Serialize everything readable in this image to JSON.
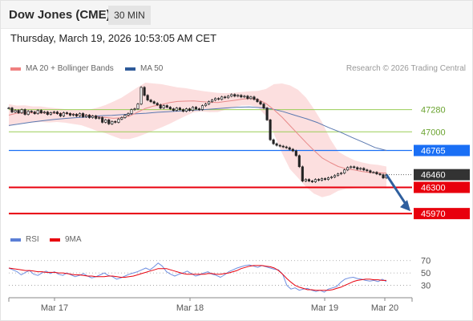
{
  "header": {
    "title": "Dow Jones (CME)",
    "interval": "30 MIN"
  },
  "datetime": "Thursday, March 19, 2026 10:53:05 AM CET",
  "legend": {
    "ma20": {
      "label": "MA 20 + Bollinger Bands",
      "color": "#f08080"
    },
    "ma50": {
      "label": "MA 50",
      "color": "#2e5a99"
    },
    "rsi": {
      "label": "RSI",
      "color": "#5b7fd6"
    },
    "ma9": {
      "label": "9MA",
      "color": "#e8000d"
    }
  },
  "copyright": "Research © 2026 Trading Central",
  "chart_data": [
    {
      "type": "line",
      "title": "",
      "x_labels": [
        "Mar 17",
        "Mar 18",
        "Mar 19",
        "Mar 20"
      ],
      "ylim": [
        45850,
        47650
      ],
      "levels": [
        {
          "value": 47280,
          "label": "47280",
          "style": "resistance",
          "color": "#9acd57"
        },
        {
          "value": 47000,
          "label": "47000",
          "style": "resistance",
          "color": "#9acd57"
        },
        {
          "value": 46765,
          "label": "46765",
          "style": "pivot",
          "color": "#1a6ff5"
        },
        {
          "value": 46460,
          "label": "46460",
          "style": "last-price",
          "color": "#333333"
        },
        {
          "value": 46300,
          "label": "46300",
          "style": "support",
          "color": "#e8000d"
        },
        {
          "value": 45970,
          "label": "45970",
          "style": "support",
          "color": "#e8000d"
        }
      ],
      "series": [
        {
          "name": "Price",
          "values": [
            47300,
            47250,
            47270,
            47240,
            47280,
            47220,
            47260,
            47250,
            47230,
            47270,
            47240,
            47250,
            47220,
            47240,
            47250,
            47230,
            47200,
            47240,
            47230,
            47210,
            47220,
            47200,
            47230,
            47190,
            47210,
            47180,
            47200,
            47170,
            47180,
            47120,
            47150,
            47100,
            47130,
            47120,
            47160,
            47180,
            47210,
            47230,
            47280,
            47290,
            47350,
            47560,
            47460,
            47400,
            47380,
            47360,
            47340,
            47300,
            47330,
            47310,
            47290,
            47270,
            47300,
            47280,
            47260,
            47290,
            47270,
            47310,
            47290,
            47280,
            47330,
            47350,
            47380,
            47400,
            47420,
            47410,
            47440,
            47430,
            47450,
            47470,
            47450,
            47460,
            47440,
            47450,
            47420,
            47440,
            47410,
            47380,
            47350,
            47300,
            47150,
            46900,
            46850,
            46830,
            46820,
            46810,
            46800,
            46780,
            46760,
            46700,
            46560,
            46380,
            46400,
            46380,
            46370,
            46400,
            46390,
            46410,
            46400,
            46420,
            46430,
            46450,
            46470,
            46480,
            46520,
            46550,
            46560,
            46550,
            46530,
            46540,
            46520,
            46510,
            46490,
            46490,
            46470,
            46460,
            46420,
            46460
          ]
        },
        {
          "name": "MA 20",
          "values": [
            47210,
            47235,
            47238,
            47240,
            47238,
            47237,
            47234,
            47231,
            47224,
            47216,
            47207,
            47191,
            47181,
            47171,
            47178,
            47197,
            47247,
            47295,
            47324,
            47344,
            47368,
            47383,
            47387,
            47390,
            47381,
            47373,
            47370,
            47383,
            47396,
            47411,
            47421,
            47408,
            47358,
            47278,
            47186,
            47079,
            46970,
            46864,
            46764,
            46671,
            46613,
            46563,
            46535,
            46519,
            46500,
            46487,
            46484,
            46479
          ]
        },
        {
          "name": "MA 50",
          "values": [
            47080,
            47101,
            47123,
            47140,
            47158,
            47170,
            47180,
            47189,
            47203,
            47208,
            47218,
            47226,
            47234,
            47247,
            47255,
            47264,
            47272,
            47279,
            47290,
            47301,
            47310,
            47314,
            47305,
            47289,
            47254,
            47209,
            47166,
            47115,
            47051,
            46995,
            46929,
            46867,
            46803,
            46765
          ]
        },
        {
          "name": "Bollinger Bands",
          "upper": [
            47350,
            47330,
            47335,
            47320,
            47320,
            47306,
            47296,
            47286,
            47273,
            47276,
            47280,
            47303,
            47337,
            47381,
            47429,
            47493,
            47559,
            47620,
            47610,
            47600,
            47580,
            47560,
            47550,
            47533,
            47515,
            47503,
            47490,
            47487,
            47492,
            47502,
            47510,
            47515,
            47540,
            47600,
            47610,
            47585,
            47530,
            47430,
            47285,
            47120,
            46910,
            46750,
            46692,
            46643,
            46613,
            46593,
            46583,
            46563
          ],
          "lower": [
            47070,
            47103,
            47115,
            47118,
            47124,
            47118,
            47124,
            47115,
            47099,
            47084,
            47049,
            47011,
            46984,
            46944,
            46910,
            46910,
            46936,
            46976,
            47015,
            47055,
            47100,
            47150,
            47200,
            47246,
            47257,
            47248,
            47250,
            47280,
            47310,
            47331,
            47334,
            47310,
            47200,
            46977,
            46734,
            46530,
            46420,
            46304,
            46220,
            46176,
            46201,
            46258,
            46281,
            46289,
            46290,
            46290,
            46296,
            46287
          ]
        }
      ]
    },
    {
      "type": "line",
      "title": "",
      "ylim": [
        0,
        100
      ],
      "y_ticks": [
        30,
        50,
        70
      ],
      "series": [
        {
          "name": "RSI",
          "values": [
            58,
            55,
            52,
            47,
            51,
            54,
            48,
            46,
            50,
            53,
            49,
            52,
            48,
            46,
            50,
            47,
            44,
            46,
            49,
            45,
            42,
            44,
            47,
            50,
            46,
            44,
            40,
            42,
            45,
            48,
            50,
            52,
            55,
            58,
            55,
            60,
            66,
            61,
            52,
            48,
            45,
            48,
            50,
            53,
            49,
            45,
            47,
            50,
            52,
            48,
            46,
            43,
            47,
            52,
            55,
            58,
            60,
            62,
            63,
            61,
            59,
            62,
            60,
            58,
            56,
            55,
            48,
            30,
            24,
            26,
            22,
            24,
            25,
            22,
            20,
            22,
            19,
            24,
            26,
            28,
            35,
            40,
            42,
            43,
            41,
            40,
            38,
            37,
            38,
            36,
            40,
            36
          ]
        },
        {
          "name": "9MA",
          "values": [
            58,
            57,
            56,
            55,
            54,
            54,
            53,
            52,
            52,
            51,
            51,
            51,
            50,
            50,
            49,
            48,
            47,
            47,
            46,
            45,
            45,
            44,
            44,
            44,
            45,
            45,
            44,
            43,
            43,
            44,
            45,
            47,
            49,
            51,
            53,
            55,
            57,
            57,
            57,
            55,
            53,
            51,
            49,
            48,
            48,
            48,
            48,
            48,
            49,
            49,
            48,
            48,
            49,
            50,
            52,
            54,
            57,
            59,
            61,
            62,
            62,
            62,
            61,
            60,
            58,
            54,
            48,
            41,
            35,
            30,
            27,
            25,
            23,
            23,
            22,
            22,
            22,
            22,
            23,
            25,
            27,
            30,
            33,
            36,
            38,
            39,
            40,
            40,
            39,
            39,
            38,
            38
          ]
        }
      ]
    }
  ]
}
